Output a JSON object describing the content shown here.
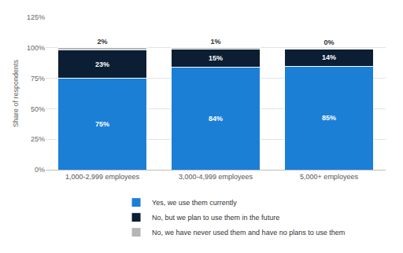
{
  "chart_data": {
    "type": "bar",
    "stacked": true,
    "data_labels": true,
    "grid": true,
    "legend": "bottom",
    "y_label": "Share of respondents",
    "categories": [
      "1,000-2,999 employees",
      "3,000-4,999 employees",
      "5,000+ employees"
    ],
    "series": [
      {
        "name": "Yes, we use them currently",
        "color": "#1c7fd6",
        "values": [
          75,
          84,
          85
        ],
        "value_labels": [
          "75%",
          "84%",
          "85%"
        ]
      },
      {
        "name": "No, but we plan to use them in the future",
        "color": "#0b1e33",
        "values": [
          23,
          15,
          14
        ],
        "value_labels": [
          "23%",
          "15%",
          "14%"
        ]
      },
      {
        "name": "No, we have never used them and have no plans to use them",
        "color": "#b5b5b5",
        "values": [
          2,
          1,
          0
        ],
        "value_labels": [
          "2%",
          "1%",
          "0%"
        ]
      }
    ],
    "ylim": [
      0,
      125
    ],
    "yticks": [
      {
        "value": 0,
        "label": "0%"
      },
      {
        "value": 25,
        "label": "25%"
      },
      {
        "value": 50,
        "label": "50%"
      },
      {
        "value": 75,
        "label": "75%"
      },
      {
        "value": 100,
        "label": "100%"
      },
      {
        "value": 125,
        "label": "125%"
      }
    ]
  }
}
